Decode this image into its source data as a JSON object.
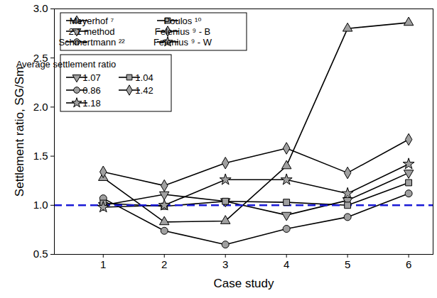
{
  "chart_data": {
    "type": "line",
    "x_label": "Case study",
    "y_label": "Settlement ratio, SG/Sm",
    "x": [
      1,
      2,
      3,
      4,
      5,
      6
    ],
    "xlim": [
      0.2,
      6.4
    ],
    "xticks": [
      1,
      2,
      3,
      4,
      5,
      6
    ],
    "ylim": [
      0.5,
      3.0
    ],
    "yticks": [
      0.5,
      {
        "value": 1,
        "label": "1.0"
      },
      1.5,
      {
        "value": 2,
        "label": "2.0"
      },
      2.5,
      {
        "value": 3,
        "label": "3.0"
      }
    ],
    "reference_line": 1,
    "legend": "upper left",
    "legend_title": "Average settlement ratio",
    "series": [
      {
        "name": "Meyerhof ⁷",
        "color": "#000000",
        "marker": "triangle-up",
        "values": [
          1.28,
          0.83,
          0.84,
          1.4,
          2.8,
          2.86
        ]
      },
      {
        "name": "2:1 method",
        "color": "#000000",
        "marker": "triangle-down",
        "values": [
          1.0,
          1.11,
          1.04,
          0.9,
          1.05,
          1.33
        ],
        "average": 1.07
      },
      {
        "name": "Schmertmann ²²",
        "color": "#000000",
        "marker": "circle",
        "values": [
          1.07,
          0.74,
          0.6,
          0.76,
          0.88,
          1.12
        ],
        "average": 0.86
      },
      {
        "name": "Poulos ¹⁰",
        "color": "#000000",
        "marker": "square",
        "values": [
          1.02,
          0.99,
          1.04,
          1.03,
          1.0,
          1.23
        ],
        "average": 1.04
      },
      {
        "name": "Felenius ⁹ - B",
        "color": "#000000",
        "marker": "diamond",
        "values": [
          1.34,
          1.2,
          1.43,
          1.58,
          1.33,
          1.67
        ],
        "average": 1.42
      },
      {
        "name": "Felenius ⁹ - W",
        "color": "#000000",
        "marker": "star",
        "values": [
          0.98,
          1.0,
          1.26,
          1.26,
          1.12,
          1.42
        ],
        "average": 1.18
      }
    ]
  }
}
